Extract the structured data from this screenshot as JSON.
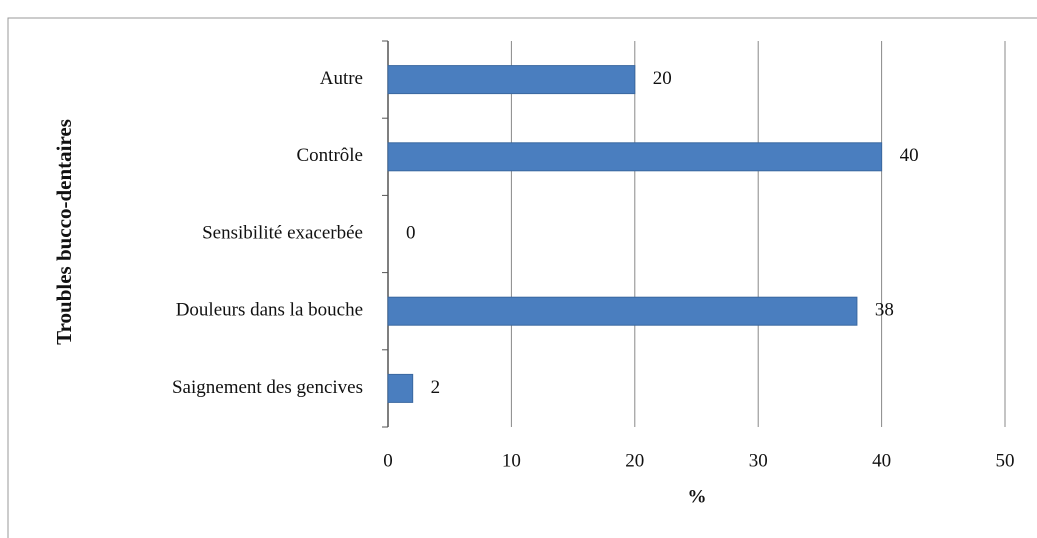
{
  "chart_data": {
    "type": "bar",
    "orientation": "horizontal",
    "xlabel": "%",
    "ylabel": "Troubles bucco-dentaires",
    "categories": [
      "Autre",
      "Contrôle",
      "Sensibilité exacerbée",
      "Douleurs dans la bouche",
      "Saignement des gencives"
    ],
    "values": [
      20,
      40,
      0,
      38,
      2
    ],
    "color": "#4a7ebf",
    "xlim": [
      0,
      50
    ],
    "xticks": [
      0,
      10,
      20,
      30,
      40,
      50
    ],
    "grid": true
  }
}
